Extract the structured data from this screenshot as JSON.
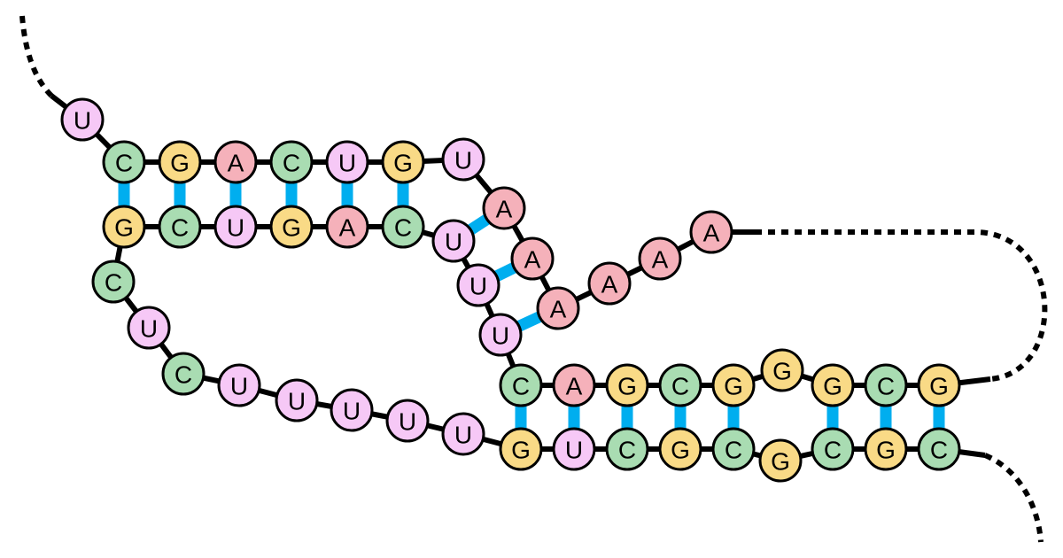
{
  "base_colors": {
    "U": "#f6c8f6",
    "C": "#a9dcb2",
    "G": "#f9da86",
    "A": "#f5b1ba"
  },
  "pair_color": "#00aeef",
  "nodes": [
    {
      "label": "U"
    },
    {
      "label": "C"
    },
    {
      "label": "G"
    },
    {
      "label": "A"
    },
    {
      "label": "C"
    },
    {
      "label": "U"
    },
    {
      "label": "G"
    },
    {
      "label": "U"
    },
    {
      "label": "A"
    },
    {
      "label": "A"
    },
    {
      "label": "A"
    },
    {
      "label": "A"
    },
    {
      "label": "A"
    },
    {
      "label": "A"
    },
    {
      "label": "G"
    },
    {
      "label": "C"
    },
    {
      "label": "G"
    },
    {
      "label": "G"
    },
    {
      "label": "G"
    },
    {
      "label": "C"
    },
    {
      "label": "G"
    },
    {
      "label": "A"
    },
    {
      "label": "C"
    },
    {
      "label": "U"
    },
    {
      "label": "U"
    },
    {
      "label": "U"
    },
    {
      "label": "C"
    },
    {
      "label": "A"
    },
    {
      "label": "G"
    },
    {
      "label": "U"
    },
    {
      "label": "C"
    },
    {
      "label": "G"
    },
    {
      "label": "C"
    },
    {
      "label": "U"
    },
    {
      "label": "C"
    },
    {
      "label": "U"
    },
    {
      "label": "U"
    },
    {
      "label": "U"
    },
    {
      "label": "U"
    },
    {
      "label": "U"
    },
    {
      "label": "G"
    },
    {
      "label": "U"
    },
    {
      "label": "C"
    },
    {
      "label": "G"
    },
    {
      "label": "C"
    },
    {
      "label": "G"
    },
    {
      "label": "C"
    },
    {
      "label": "G"
    },
    {
      "label": "C"
    }
  ]
}
